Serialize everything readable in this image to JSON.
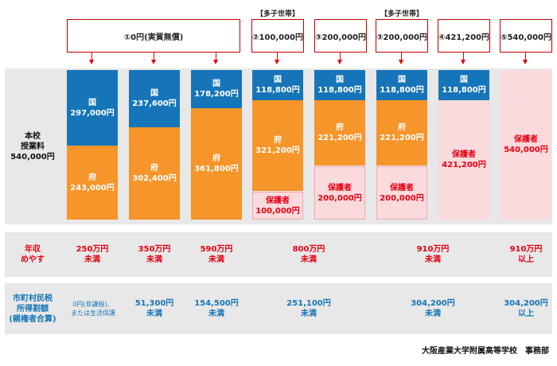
{
  "headers": {
    "h1": "①0円(実質無償)",
    "h2": "②100,000円",
    "h3": "③200,000円",
    "h4": "③200,000円",
    "h5": "④421,200円",
    "h6": "⑤540,000円",
    "tag_multi1": "【多子世帯】",
    "tag_multi2": "【多子世帯】"
  },
  "left_labels": {
    "tuition_line1": "本校",
    "tuition_line2": "授業料",
    "tuition_line3": "540,000円",
    "income_line1": "年収",
    "income_line2": "めやす",
    "tax_line1": "市町村民税",
    "tax_line2": "所得割額",
    "tax_line3": "(親権者合算)"
  },
  "columns": [
    {
      "kuni_label": "国",
      "kuni_amount": "297,000円",
      "fu_label": "府",
      "fu_amount": "243,000円"
    },
    {
      "kuni_label": "国",
      "kuni_amount": "237,600円",
      "fu_label": "府",
      "fu_amount": "302,400円"
    },
    {
      "kuni_label": "国",
      "kuni_amount": "178,200円",
      "fu_label": "府",
      "fu_amount": "361,800円"
    },
    {
      "kuni_label": "国",
      "kuni_amount": "118,800円",
      "fu_label": "府",
      "fu_amount": "321,200円",
      "hogo_label": "保護者",
      "hogo_amount": "100,000円"
    },
    {
      "kuni_label": "国",
      "kuni_amount": "118,800円",
      "fu_label": "府",
      "fu_amount": "221,200円",
      "hogo_label": "保護者",
      "hogo_amount": "200,000円"
    },
    {
      "kuni_label": "国",
      "kuni_amount": "118,800円",
      "fu_label": "府",
      "fu_amount": "221,200円",
      "hogo_label": "保護者",
      "hogo_amount": "200,000円"
    },
    {
      "kuni_label": "国",
      "kuni_amount": "118,800円",
      "hogo_label": "保護者",
      "hogo_amount": "421,200円"
    },
    {
      "hogo_label": "保護者",
      "hogo_amount": "540,000円"
    }
  ],
  "income": [
    {
      "line1": "250万円",
      "line2": "未満"
    },
    {
      "line1": "350万円",
      "line2": "未満"
    },
    {
      "line1": "590万円",
      "line2": "未満"
    },
    {
      "line1": "800万円",
      "line2": "未満"
    },
    {
      "line1": "910万円",
      "line2": "未満"
    },
    {
      "line1": "910万円",
      "line2": "以上"
    }
  ],
  "tax": [
    {
      "line1": "0円(非課税)、",
      "line2": "または生活保護"
    },
    {
      "line1": "51,300円",
      "line2": "未満"
    },
    {
      "line1": "154,500円",
      "line2": "未満"
    },
    {
      "line1": "251,100円",
      "line2": "未満"
    },
    {
      "line1": "304,200円",
      "line2": "未満"
    },
    {
      "line1": "304,200円",
      "line2": "以上"
    }
  ],
  "footer": "大阪産業大学附属高等学校　事務部",
  "colors": {
    "kuni": "#1675b8",
    "fu": "#f5952a",
    "hogo": "#fadadd",
    "red": "#e60012",
    "panel": "#e8e8e8"
  }
}
